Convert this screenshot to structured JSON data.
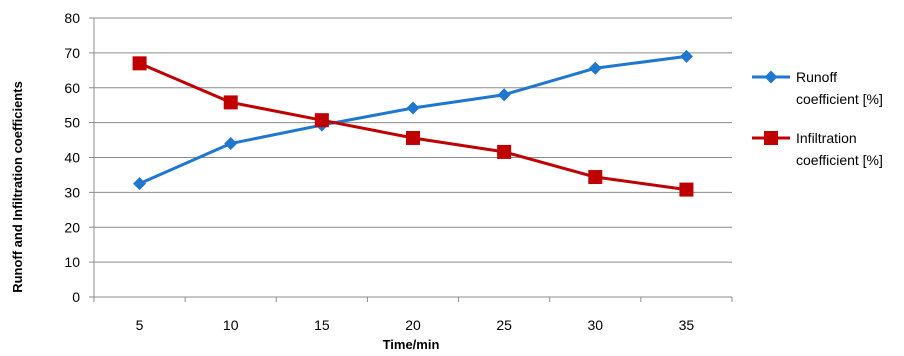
{
  "chart_data": {
    "type": "line",
    "title": "",
    "xlabel": "Time/min",
    "ylabel": "Runoff and Infiltration coefficients",
    "x": [
      5,
      10,
      15,
      20,
      25,
      30,
      35
    ],
    "ylim": [
      0,
      80
    ],
    "yticks": [
      0,
      10,
      20,
      30,
      40,
      50,
      60,
      70,
      80
    ],
    "grid": true,
    "legend_position": "right",
    "series": [
      {
        "name_lines": [
          "Runoff",
          "coefficient  [%]"
        ],
        "color": "#1f77d0",
        "marker": "diamond",
        "values": [
          32.5,
          44,
          49.3,
          54.2,
          58,
          65.6,
          69
        ]
      },
      {
        "name_lines": [
          "Infiltration",
          "coefficient [%]"
        ],
        "color": "#c00000",
        "marker": "square",
        "values": [
          67,
          55.8,
          50.7,
          45.6,
          41.6,
          34.4,
          30.8
        ]
      }
    ]
  }
}
